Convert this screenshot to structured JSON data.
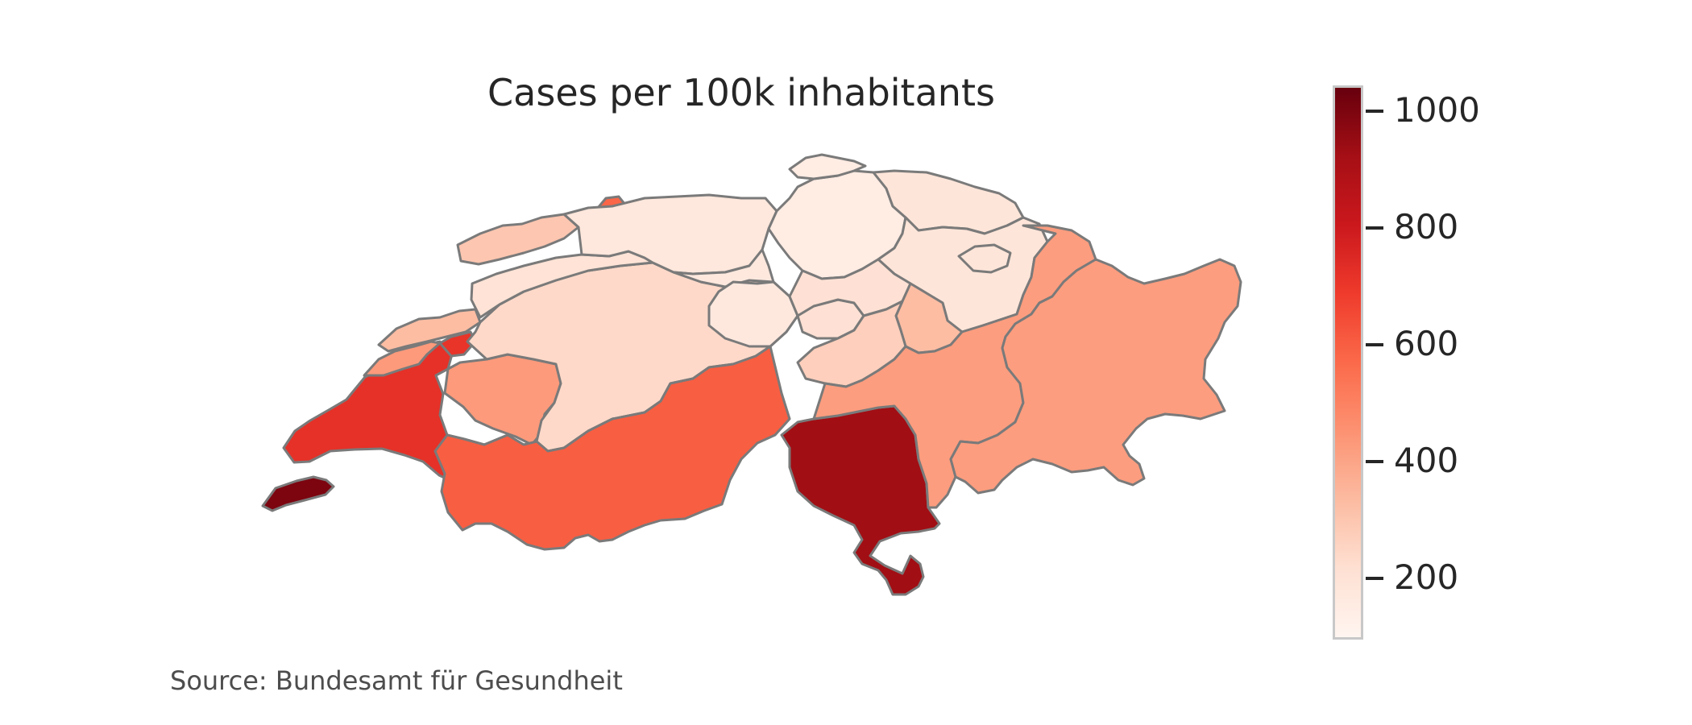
{
  "title": "Cases per 100k inhabitants",
  "source": "Source: Bundesamt für Gesundheit",
  "colorbar": {
    "min": 100,
    "max": 1040,
    "ticks": [
      "200",
      "400",
      "600",
      "800",
      "1000"
    ],
    "tick_values": [
      200,
      400,
      600,
      800,
      1000
    ],
    "colors": [
      "#fff5f0",
      "#fee0d2",
      "#fcbba1",
      "#fc9272",
      "#fb6a4a",
      "#ef3b2c",
      "#cb181d",
      "#a50f15",
      "#67000d"
    ]
  },
  "edge_color": "#7a7a7a",
  "regions": [
    {
      "id": "geneva",
      "value": 1000
    },
    {
      "id": "vaud",
      "value": 720
    },
    {
      "id": "fribourg",
      "value": 710
    },
    {
      "id": "neuchatel",
      "value": 430
    },
    {
      "id": "jura",
      "value": 330
    },
    {
      "id": "bern",
      "value": 240
    },
    {
      "id": "valais",
      "value": 600
    },
    {
      "id": "ticino",
      "value": 930
    },
    {
      "id": "graubuenden",
      "value": 420
    },
    {
      "id": "uri",
      "value": 270
    },
    {
      "id": "solothurn",
      "value": 200
    },
    {
      "id": "basel-land",
      "value": 300
    },
    {
      "id": "basel-stadt",
      "value": 580
    },
    {
      "id": "aargau",
      "value": 180
    },
    {
      "id": "zurich",
      "value": 150
    },
    {
      "id": "lucerne",
      "value": 170
    },
    {
      "id": "schwyz",
      "value": 210
    },
    {
      "id": "st-gallen",
      "value": 190
    },
    {
      "id": "thurgau",
      "value": 190
    },
    {
      "id": "glarus",
      "value": 330
    }
  ]
}
